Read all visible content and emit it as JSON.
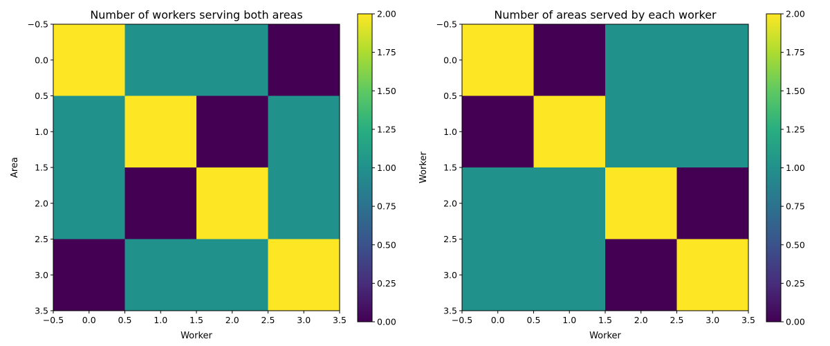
{
  "chart_data": [
    {
      "type": "heatmap",
      "title": "Number of workers serving both areas",
      "xlabel": "Worker",
      "ylabel": "Area",
      "xlim": [
        -0.5,
        3.5
      ],
      "ylim": [
        3.5,
        -0.5
      ],
      "x_ticks": [
        "−0.5",
        "0.0",
        "0.5",
        "1.0",
        "1.5",
        "2.0",
        "2.5",
        "3.0",
        "3.5"
      ],
      "y_ticks": [
        "−0.5",
        "0.0",
        "0.5",
        "1.0",
        "1.5",
        "2.0",
        "2.5",
        "3.0",
        "3.5"
      ],
      "values": [
        [
          2,
          1,
          1,
          0
        ],
        [
          1,
          2,
          0,
          1
        ],
        [
          1,
          0,
          2,
          1
        ],
        [
          0,
          1,
          1,
          2
        ]
      ],
      "colorbar": {
        "min": 0,
        "max": 2,
        "ticks": [
          "0.00",
          "0.25",
          "0.50",
          "0.75",
          "1.00",
          "1.25",
          "1.50",
          "1.75",
          "2.00"
        ]
      },
      "colormap": "viridis"
    },
    {
      "type": "heatmap",
      "title": "Number of areas served by each worker",
      "xlabel": "Worker",
      "ylabel": "Worker",
      "xlim": [
        -0.5,
        3.5
      ],
      "ylim": [
        3.5,
        -0.5
      ],
      "x_ticks": [
        "−0.5",
        "0.0",
        "0.5",
        "1.0",
        "1.5",
        "2.0",
        "2.5",
        "3.0",
        "3.5"
      ],
      "y_ticks": [
        "−0.5",
        "0.0",
        "0.5",
        "1.0",
        "1.5",
        "2.0",
        "2.5",
        "3.0",
        "3.5"
      ],
      "values": [
        [
          2,
          0,
          1,
          1
        ],
        [
          0,
          2,
          1,
          1
        ],
        [
          1,
          1,
          2,
          0
        ],
        [
          1,
          1,
          0,
          2
        ]
      ],
      "colorbar": {
        "min": 0,
        "max": 2,
        "ticks": [
          "0.00",
          "0.25",
          "0.50",
          "0.75",
          "1.00",
          "1.25",
          "1.50",
          "1.75",
          "2.00"
        ]
      },
      "colormap": "viridis"
    }
  ]
}
